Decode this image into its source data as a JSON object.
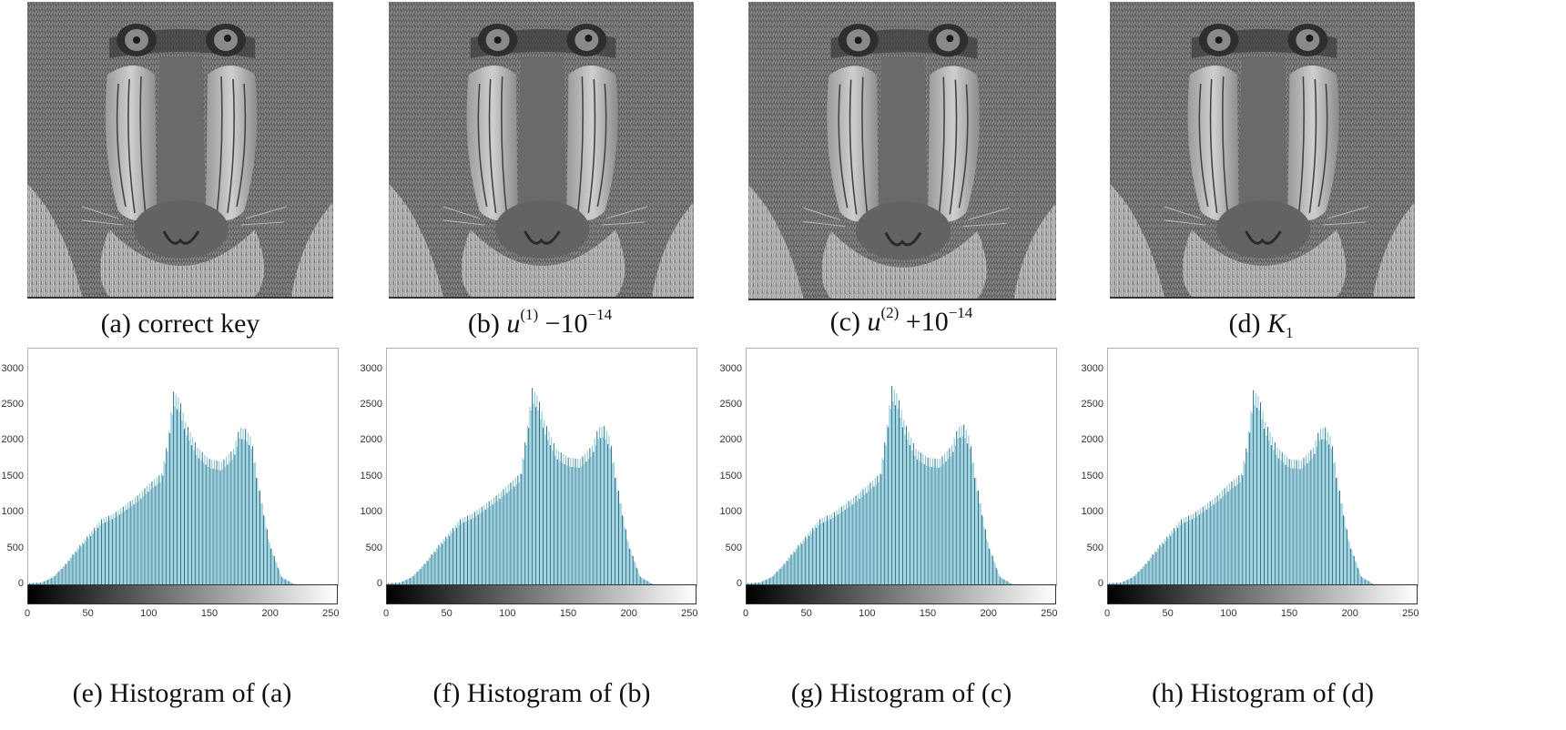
{
  "figure": {
    "images": [
      {
        "id": "a",
        "label": "(a)",
        "caption_text": "correct key",
        "caption_math": ""
      },
      {
        "id": "b",
        "label": "(b)",
        "caption_text": "",
        "caption_math": {
          "base": "u",
          "sup": "(1)",
          "op": " −10",
          "exp": "−14"
        }
      },
      {
        "id": "c",
        "label": "(c)",
        "caption_text": "",
        "caption_math": {
          "base": "u",
          "sup": "(2)",
          "op": " +10",
          "exp": "−14"
        }
      },
      {
        "id": "d",
        "label": "(d)",
        "caption_text": "",
        "caption_math": {
          "base": "K",
          "sub": "1"
        }
      }
    ],
    "histograms": [
      {
        "id": "e",
        "caption": "(e) Histogram of (a)"
      },
      {
        "id": "f",
        "caption": "(f) Histogram of (b)"
      },
      {
        "id": "g",
        "caption": "(g) Histogram of (c)"
      },
      {
        "id": "h",
        "caption": "(h) Histogram of (d)"
      }
    ],
    "captions": {
      "a": "(a) correct key",
      "b_label": "(b)",
      "b_base": "u",
      "b_sup": "(1)",
      "b_op": "−10",
      "b_exp": "−14",
      "c_label": "(c)",
      "c_base": "u",
      "c_sup": "(2)",
      "c_op": "+10",
      "c_exp": "−14",
      "d_label": "(d)",
      "d_base": "K",
      "d_sub": "1"
    },
    "bar_color": "#7fc4d6",
    "bar_edge_color": "#2f6f86"
  },
  "chart_data": [
    {
      "type": "bar",
      "title": "(e) Histogram of (a)",
      "xlabel": "",
      "ylabel": "",
      "xlim": [
        0,
        255
      ],
      "ylim": [
        0,
        3300
      ],
      "xticks": [
        0,
        50,
        100,
        150,
        200,
        250
      ],
      "yticks": [
        0,
        500,
        1000,
        1500,
        2000,
        2500,
        3000
      ],
      "grid": false,
      "colorbar": "grayscale 0-255",
      "x": [
        0,
        10,
        20,
        30,
        40,
        50,
        60,
        70,
        80,
        90,
        100,
        110,
        115,
        120,
        125,
        130,
        140,
        150,
        160,
        170,
        175,
        180,
        185,
        190,
        200,
        210,
        220,
        230,
        255
      ],
      "values": [
        30,
        40,
        120,
        300,
        520,
        720,
        920,
        1000,
        1120,
        1250,
        1420,
        1560,
        2000,
        2700,
        2600,
        2280,
        1920,
        1760,
        1720,
        1900,
        2200,
        2180,
        2050,
        1500,
        600,
        120,
        20,
        0,
        0
      ]
    },
    {
      "type": "bar",
      "title": "(f) Histogram of (b)",
      "xlim": [
        0,
        255
      ],
      "ylim": [
        0,
        3300
      ],
      "xticks": [
        0,
        50,
        100,
        150,
        200,
        250
      ],
      "yticks": [
        0,
        500,
        1000,
        1500,
        2000,
        2500,
        3000
      ],
      "x": [
        0,
        10,
        20,
        30,
        40,
        50,
        60,
        70,
        80,
        90,
        100,
        110,
        115,
        120,
        125,
        130,
        140,
        150,
        160,
        170,
        175,
        180,
        185,
        190,
        200,
        210,
        220,
        230,
        255
      ],
      "values": [
        30,
        40,
        120,
        300,
        520,
        720,
        920,
        1000,
        1120,
        1250,
        1400,
        1560,
        2100,
        2750,
        2620,
        2300,
        1900,
        1780,
        1760,
        1950,
        2200,
        2220,
        2050,
        1500,
        600,
        120,
        20,
        0,
        0
      ]
    },
    {
      "type": "bar",
      "title": "(g) Histogram of (c)",
      "xlim": [
        0,
        255
      ],
      "ylim": [
        0,
        3300
      ],
      "xticks": [
        0,
        50,
        100,
        150,
        200,
        250
      ],
      "yticks": [
        0,
        500,
        1000,
        1500,
        2000,
        2500,
        3000
      ],
      "x": [
        0,
        10,
        20,
        30,
        40,
        50,
        60,
        70,
        80,
        90,
        100,
        110,
        115,
        120,
        125,
        130,
        140,
        150,
        160,
        170,
        175,
        180,
        185,
        190,
        200,
        210,
        220,
        230,
        255
      ],
      "values": [
        30,
        40,
        120,
        300,
        520,
        720,
        920,
        1000,
        1120,
        1250,
        1400,
        1560,
        2100,
        2780,
        2650,
        2300,
        1900,
        1780,
        1760,
        1950,
        2200,
        2240,
        2050,
        1500,
        600,
        120,
        20,
        0,
        0
      ]
    },
    {
      "type": "bar",
      "title": "(h) Histogram of (d)",
      "xlim": [
        0,
        255
      ],
      "ylim": [
        0,
        3300
      ],
      "xticks": [
        0,
        50,
        100,
        150,
        200,
        250
      ],
      "yticks": [
        0,
        500,
        1000,
        1500,
        2000,
        2500,
        3000
      ],
      "x": [
        0,
        10,
        20,
        30,
        40,
        50,
        60,
        70,
        80,
        90,
        100,
        110,
        115,
        120,
        125,
        130,
        140,
        150,
        160,
        170,
        175,
        180,
        185,
        190,
        200,
        210,
        220,
        230,
        255
      ],
      "values": [
        30,
        40,
        120,
        300,
        520,
        720,
        920,
        1000,
        1120,
        1250,
        1420,
        1560,
        2000,
        2720,
        2620,
        2280,
        1920,
        1760,
        1740,
        1920,
        2180,
        2200,
        2050,
        1500,
        600,
        120,
        20,
        0,
        0
      ]
    }
  ]
}
